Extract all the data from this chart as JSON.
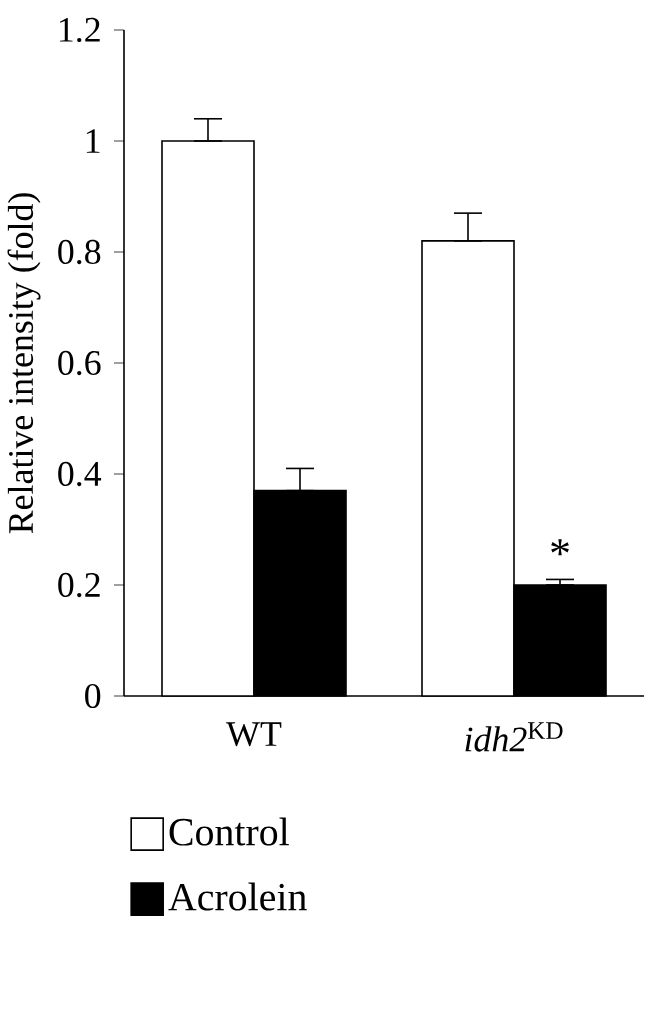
{
  "chart_data": {
    "type": "bar",
    "ylabel": "Relative intensity (fold)",
    "categories": [
      "WT",
      "*idh2*$^{KD}$"
    ],
    "series": [
      {
        "name": "Control",
        "color": "#ffffff",
        "values": [
          1.0,
          0.82
        ],
        "errors": [
          [
            1.0,
            1.04
          ],
          [
            0.82,
            0.87
          ]
        ]
      },
      {
        "name": "Acrolein",
        "color": "#000000",
        "values": [
          0.37,
          0.2
        ],
        "errors": [
          [
            0.37,
            0.41
          ],
          [
            0.2,
            0.21
          ]
        ]
      }
    ],
    "ylim": [
      0,
      1.2
    ],
    "yticks": [
      0,
      0.2,
      0.4,
      0.6,
      0.8,
      1,
      1.2
    ],
    "annotations": [
      {
        "text": "*",
        "x": "*idh2*$^{KD}$",
        "y": 0.23
      }
    ],
    "legend": "bottom"
  }
}
